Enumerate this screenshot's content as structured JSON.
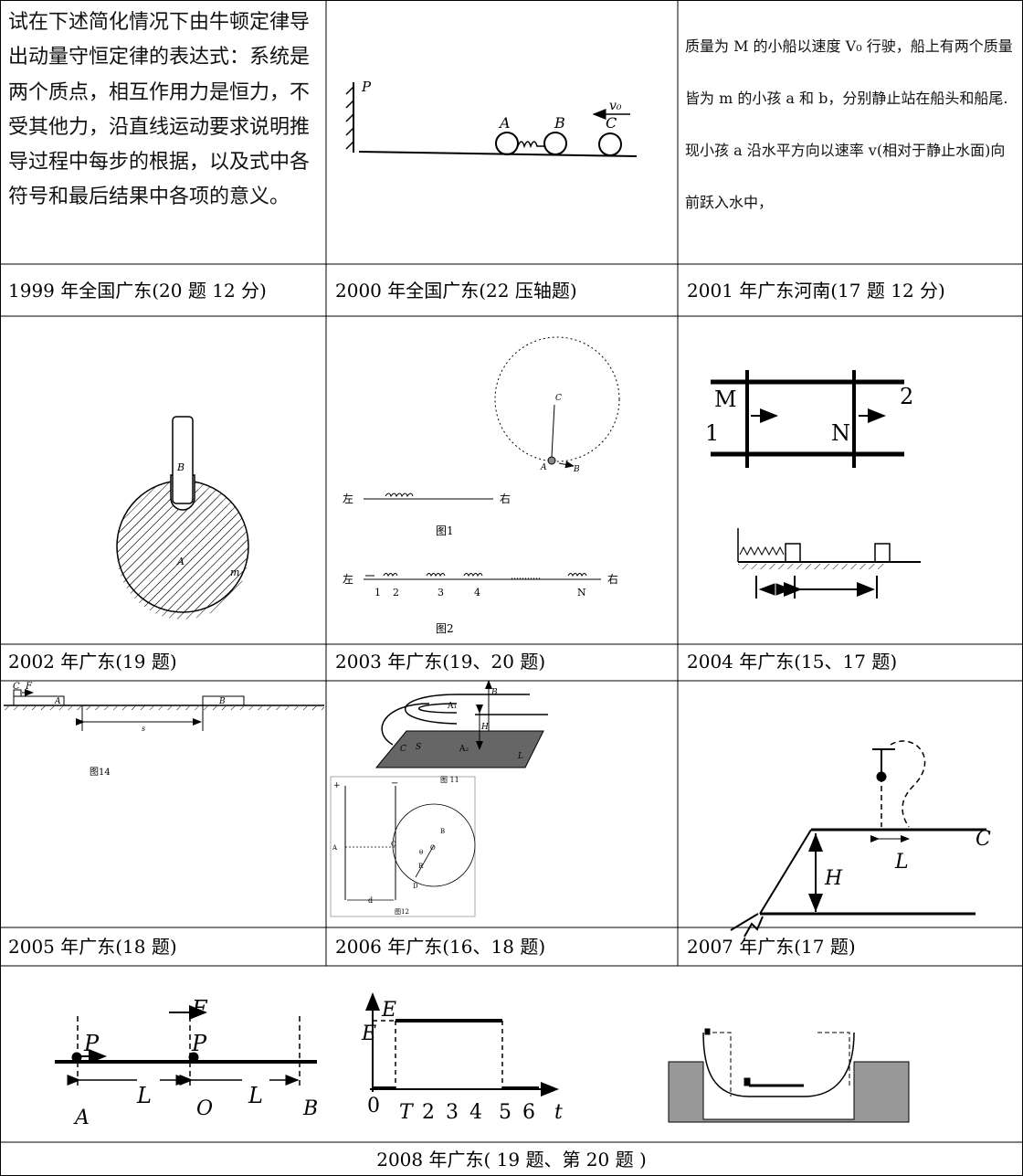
{
  "cells": [
    {
      "text": "试在下述简化情况下由牛顿定律导出动量守恒定律的表达式：系统是两个质点，相互作用力是恒力，不受其他力，沿直线运动要求说明推导过程中每步的根据，以及式中各符号和最后结果中各项的意义。",
      "caption": "1999 年全国广东(20 题 12 分)"
    },
    {
      "labels": [
        "P",
        "v₀",
        "A",
        "B",
        "C"
      ],
      "caption": "2000 年全国广东(22 压轴题)"
    },
    {
      "text": "质量为 M 的小船以速度 V₀ 行驶，船上有两个质量皆为 m 的小孩 a 和 b，分别静止站在船头和船尾. 现小孩 a 沿水平方向以速率 v(相对于静止水面)向前跃入水中，",
      "caption": "2001 年广东河南(17 题 12 分)"
    },
    {
      "labels": [
        "B",
        "A",
        "m"
      ],
      "caption": "2002 年广东(19 题)"
    },
    {
      "labels": [
        "C",
        "A",
        "B",
        "左",
        "右",
        "图1",
        "左",
        "1",
        "2",
        "3",
        "4",
        "N",
        "右",
        "图2"
      ],
      "caption": "2003 年广东(19、20 题)"
    },
    {
      "labels": [
        "M",
        "2",
        "1",
        "N"
      ],
      "caption": "2004 年广东(15、17 题)"
    },
    {
      "labels": [
        "C",
        "F",
        "A",
        "B",
        "s",
        "图14"
      ],
      "caption": "2005 年广东(18 题)"
    },
    {
      "labels": [
        "B",
        "A₁",
        "H",
        "C",
        "S",
        "A₂",
        "L",
        "图 11",
        "+",
        "−",
        "A",
        "C",
        "B",
        "O",
        "θ",
        "R",
        "D",
        "d",
        "图12"
      ],
      "caption": "2006 年广东(16、18 题)"
    },
    {
      "labels": [
        "L",
        "H",
        "C"
      ],
      "caption": "2007 年广东(17 题)"
    },
    {
      "labels": [
        "F",
        "P",
        "P",
        "A",
        "L",
        "O",
        "L",
        "B",
        "E",
        "E",
        "0",
        "T",
        "2",
        "3",
        "4",
        "5",
        "6",
        "t"
      ],
      "caption": "2008 年广东( 19 题、第 20 题 )"
    }
  ]
}
